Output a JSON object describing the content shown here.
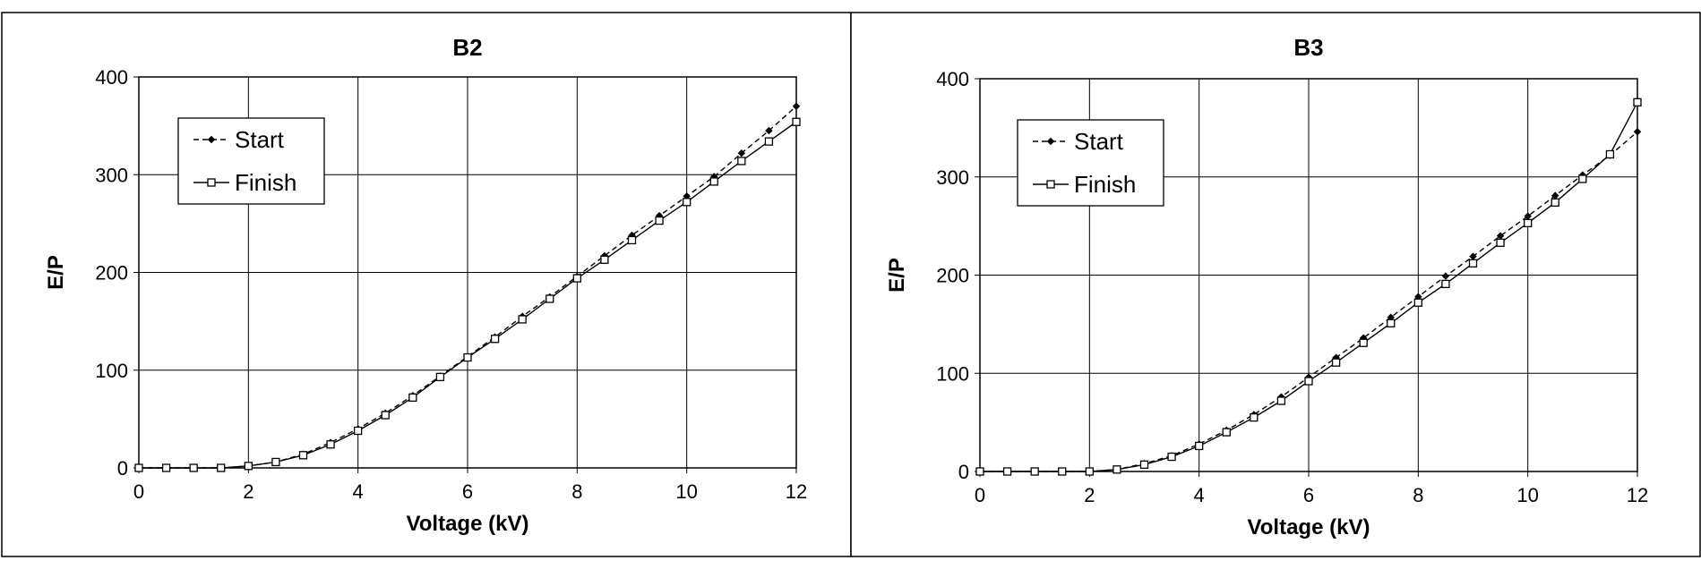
{
  "chart_data": [
    {
      "type": "line",
      "title": "B2",
      "xlabel": "Voltage (kV)",
      "ylabel": "E/P",
      "xlim": [
        0,
        12
      ],
      "ylim": [
        0,
        400
      ],
      "x_ticks": [
        0,
        2,
        4,
        6,
        8,
        10,
        12
      ],
      "y_ticks": [
        0,
        100,
        200,
        300,
        400
      ],
      "grid": true,
      "legend_position": "top-left",
      "x": [
        0,
        0.5,
        1,
        1.5,
        2,
        2.5,
        3,
        3.5,
        4,
        4.5,
        5,
        5.5,
        6,
        6.5,
        7,
        7.5,
        8,
        8.5,
        9,
        9.5,
        10,
        10.5,
        11,
        11.5,
        12
      ],
      "series": [
        {
          "name": "Start",
          "line_style": "dashed",
          "marker": "filled-diamond",
          "values": [
            0,
            0,
            0,
            0,
            2,
            6,
            14,
            26,
            40,
            56,
            74,
            94,
            114,
            134,
            155,
            175,
            196,
            217,
            238,
            258,
            278,
            298,
            322,
            345,
            370
          ]
        },
        {
          "name": "Finish",
          "line_style": "solid",
          "marker": "open-square",
          "values": [
            0,
            0,
            0,
            0,
            2,
            6,
            13,
            24,
            38,
            54,
            72,
            93,
            113,
            132,
            152,
            173,
            194,
            213,
            233,
            253,
            272,
            293,
            314,
            334,
            354
          ]
        }
      ]
    },
    {
      "type": "line",
      "title": "B3",
      "xlabel": "Voltage (kV)",
      "ylabel": "E/P",
      "xlim": [
        0,
        12
      ],
      "ylim": [
        0,
        400
      ],
      "x_ticks": [
        0,
        2,
        4,
        6,
        8,
        10,
        12
      ],
      "y_ticks": [
        0,
        100,
        200,
        300,
        400
      ],
      "grid": true,
      "legend_position": "top-left",
      "x": [
        0,
        0.5,
        1,
        1.5,
        2,
        2.5,
        3,
        3.5,
        4,
        4.5,
        5,
        5.5,
        6,
        6.5,
        7,
        7.5,
        8,
        8.5,
        9,
        9.5,
        10,
        10.5,
        11,
        11.5,
        12
      ],
      "series": [
        {
          "name": "Start",
          "line_style": "dashed",
          "marker": "filled-diamond",
          "values": [
            0,
            0,
            0,
            0,
            0,
            2,
            8,
            16,
            28,
            42,
            58,
            76,
            96,
            116,
            136,
            157,
            178,
            199,
            219,
            240,
            260,
            281,
            302,
            322,
            346
          ]
        },
        {
          "name": "Finish",
          "line_style": "solid",
          "marker": "open-square",
          "values": [
            0,
            0,
            0,
            0,
            0,
            2,
            7,
            15,
            26,
            40,
            55,
            72,
            92,
            111,
            131,
            151,
            172,
            191,
            212,
            233,
            253,
            274,
            298,
            323,
            376
          ]
        }
      ]
    }
  ]
}
